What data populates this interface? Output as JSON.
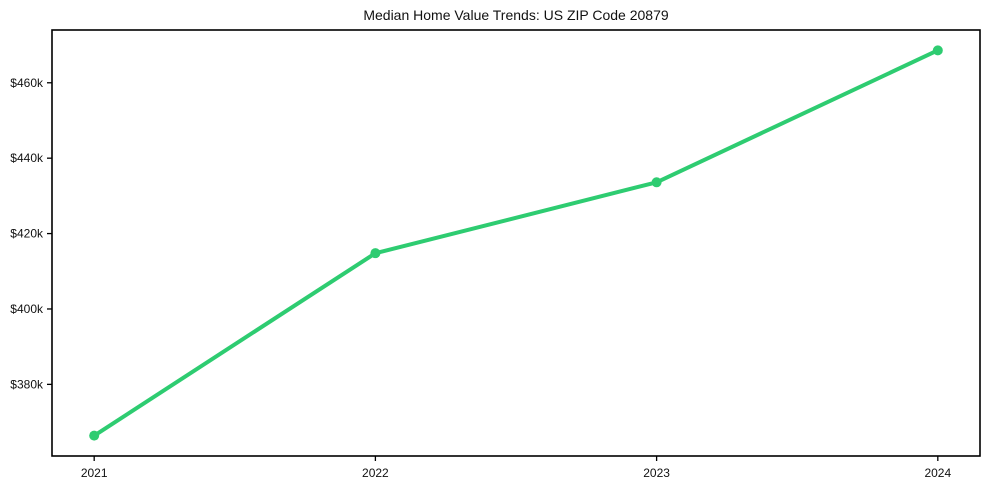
{
  "page": {
    "title": "Median Home Value Trends: US ZIP Code 20879"
  },
  "colors": {
    "line": "#2ecc71",
    "marker": "#2ecc71",
    "axis": "#000000",
    "text": "#111111",
    "background": "#ffffff"
  },
  "chart_data": {
    "type": "line",
    "title": "Median Home Value Trends: US ZIP Code 20879",
    "x": [
      2021,
      2022,
      2023,
      2024
    ],
    "series": [
      {
        "name": "Median Home Value",
        "values": [
          366400,
          414800,
          433600,
          468600
        ]
      }
    ],
    "xlabel": "",
    "ylabel": "",
    "xlim": [
      2020.85,
      2024.15
    ],
    "ylim": [
      361000,
      474000
    ],
    "xticks": [
      {
        "value": 2021,
        "label": "2021"
      },
      {
        "value": 2022,
        "label": "2022"
      },
      {
        "value": 2023,
        "label": "2023"
      },
      {
        "value": 2024,
        "label": "2024"
      }
    ],
    "yticks": [
      {
        "value": 380000,
        "label": "$380k"
      },
      {
        "value": 400000,
        "label": "$400k"
      },
      {
        "value": 420000,
        "label": "$420k"
      },
      {
        "value": 440000,
        "label": "$440k"
      },
      {
        "value": 460000,
        "label": "$460k"
      }
    ],
    "grid": false,
    "legend": "none",
    "marker": "circle",
    "line_width": 4,
    "marker_radius": 5
  }
}
